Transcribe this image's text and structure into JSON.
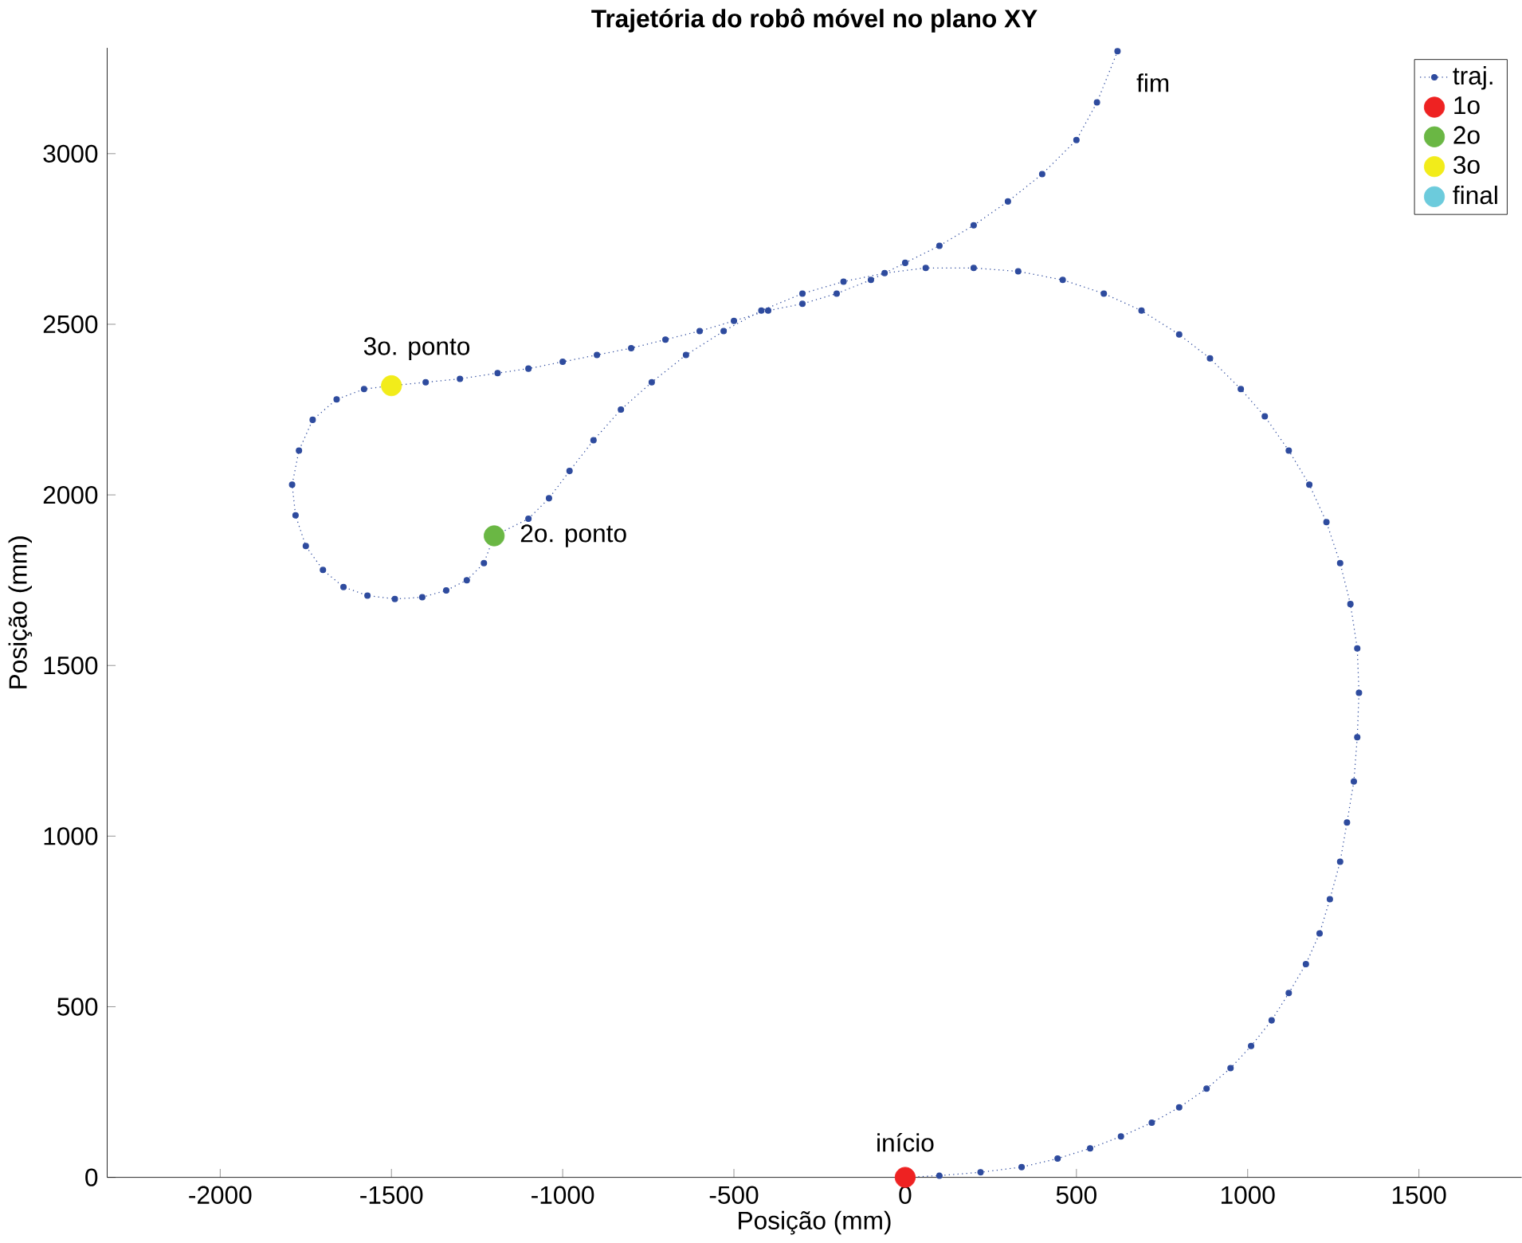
{
  "chart_data": {
    "type": "line",
    "title": "Trajetória do robô móvel no plano XY",
    "xlabel": "Posição (mm)",
    "ylabel": "Posição (mm)",
    "xlim": [
      -2330,
      1800
    ],
    "ylim": [
      0,
      3310
    ],
    "xticks": [
      -2000,
      -1500,
      -1000,
      -500,
      0,
      500,
      1000,
      1500
    ],
    "yticks": [
      0,
      500,
      1000,
      1500,
      2000,
      2500,
      3000
    ],
    "grid": false,
    "legend": "top right",
    "marker": "circle",
    "series": [
      {
        "name": "traj.",
        "type": "line",
        "line_style": "dotted",
        "color": "#2e4b9e",
        "x": [
          0,
          100,
          220,
          340,
          445,
          540,
          630,
          720,
          800,
          880,
          950,
          1010,
          1070,
          1120,
          1170,
          1210,
          1240,
          1270,
          1290,
          1310,
          1320,
          1325,
          1320,
          1300,
          1270,
          1230,
          1180,
          1120,
          1050,
          980,
          890,
          800,
          690,
          580,
          460,
          330,
          200,
          60,
          -60,
          -180,
          -300,
          -420,
          -530,
          -640,
          -740,
          -830,
          -910,
          -980,
          -1040,
          -1100,
          -1200,
          -1230,
          -1280,
          -1340,
          -1410,
          -1490,
          -1570,
          -1640,
          -1700,
          -1750,
          -1780,
          -1790,
          -1770,
          -1730,
          -1660,
          -1580,
          -1500,
          -1400,
          -1300,
          -1190,
          -1100,
          -1000,
          -900,
          -800,
          -700,
          -600,
          -500,
          -400,
          -300,
          -200,
          -100,
          0,
          100,
          200,
          300,
          400,
          500,
          560,
          620
        ],
        "values": [
          0,
          5,
          15,
          30,
          55,
          85,
          120,
          160,
          205,
          260,
          320,
          385,
          460,
          540,
          625,
          715,
          815,
          925,
          1040,
          1160,
          1290,
          1420,
          1550,
          1680,
          1800,
          1920,
          2030,
          2130,
          2230,
          2310,
          2400,
          2470,
          2540,
          2590,
          2630,
          2655,
          2665,
          2665,
          2650,
          2625,
          2590,
          2540,
          2480,
          2410,
          2330,
          2250,
          2160,
          2070,
          1990,
          1930,
          1880,
          1800,
          1750,
          1720,
          1700,
          1695,
          1705,
          1730,
          1780,
          1850,
          1940,
          2030,
          2130,
          2220,
          2280,
          2310,
          2320,
          2330,
          2340,
          2357,
          2370,
          2390,
          2410,
          2430,
          2455,
          2480,
          2510,
          2540,
          2560,
          2590,
          2630,
          2680,
          2730,
          2790,
          2860,
          2940,
          3040,
          3150,
          3300
        ]
      },
      {
        "name": "1o",
        "type": "scatter",
        "color": "#ee2222",
        "x": [
          0
        ],
        "values": [
          0
        ]
      },
      {
        "name": "2o",
        "type": "scatter",
        "color": "#6ab744",
        "x": [
          -1200
        ],
        "values": [
          1880
        ]
      },
      {
        "name": "3o",
        "type": "scatter",
        "color": "#f2ec1a",
        "x": [
          -1500
        ],
        "values": [
          2320
        ]
      },
      {
        "name": "final",
        "type": "scatter",
        "color": "#6ccbdc",
        "x": [
          null
        ],
        "values": [
          null
        ]
      }
    ],
    "annotations": [
      {
        "text": "fim",
        "x": 620,
        "y": 3300
      },
      {
        "text": "início",
        "x": 0,
        "y": 0
      },
      {
        "text": "2o. ponto",
        "x": -1200,
        "y": 1880
      },
      {
        "text": "3o. ponto",
        "x": -1500,
        "y": 2320
      }
    ]
  }
}
